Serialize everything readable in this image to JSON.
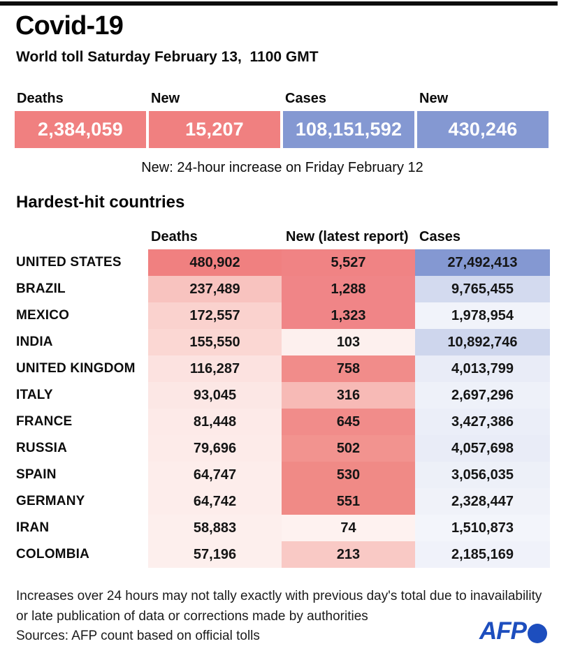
{
  "header": {
    "title": "Covid-19",
    "subtitle": "World toll Saturday February 13,  1100 GMT"
  },
  "summary": {
    "cards": [
      {
        "label": "Deaths",
        "value": "2,384,059",
        "color": "#f08080"
      },
      {
        "label": "New",
        "value": "15,207",
        "color": "#f08080"
      },
      {
        "label": "Cases",
        "value": "108,151,592",
        "color": "#8498d2"
      },
      {
        "label": "New",
        "value": "430,246",
        "color": "#8498d2"
      }
    ],
    "note": "New: 24-hour increase on Friday February 12"
  },
  "table": {
    "section_title": "Hardest-hit countries",
    "columns": [
      "Deaths",
      "New (latest report)",
      "Cases"
    ],
    "rows": [
      {
        "country": "UNITED STATES",
        "deaths": "480,902",
        "new": "5,527",
        "cases": "27,492,413",
        "colors": [
          "#f08080",
          "#f08384",
          "#8498d2"
        ]
      },
      {
        "country": "BRAZIL",
        "deaths": "237,489",
        "new": "1,288",
        "cases": "9,765,455",
        "colors": [
          "#f8c3bf",
          "#f08587",
          "#d3daef"
        ]
      },
      {
        "country": "MEXICO",
        "deaths": "172,557",
        "new": "1,323",
        "cases": "1,978,954",
        "colors": [
          "#fad2ce",
          "#f08587",
          "#f1f3fa"
        ]
      },
      {
        "country": "INDIA",
        "deaths": "155,550",
        "new": "103",
        "cases": "10,892,746",
        "colors": [
          "#fbd7d3",
          "#fdf0ee",
          "#ced6ed"
        ]
      },
      {
        "country": "UNITED KINGDOM",
        "deaths": "116,287",
        "new": "758",
        "cases": "4,013,799",
        "colors": [
          "#fce2e0",
          "#f18c8a",
          "#e9ecf7"
        ]
      },
      {
        "country": "ITALY",
        "deaths": "93,045",
        "new": "316",
        "cases": "2,697,296",
        "colors": [
          "#fce7e5",
          "#f7bab6",
          "#eef1f9"
        ]
      },
      {
        "country": "FRANCE",
        "deaths": "81,448",
        "new": "645",
        "cases": "3,427,386",
        "colors": [
          "#fdeae8",
          "#f18c8a",
          "#ebeef8"
        ]
      },
      {
        "country": "RUSSIA",
        "deaths": "79,696",
        "new": "502",
        "cases": "4,057,698",
        "colors": [
          "#fdebe9",
          "#f2938f",
          "#e9ecf7"
        ]
      },
      {
        "country": "SPAIN",
        "deaths": "64,747",
        "new": "530",
        "cases": "3,056,035",
        "colors": [
          "#fdedeb",
          "#f08a86",
          "#edf0f8"
        ]
      },
      {
        "country": "GERMANY",
        "deaths": "64,742",
        "new": "551",
        "cases": "2,328,447",
        "colors": [
          "#fdedeb",
          "#f08a86",
          "#f0f2f9"
        ]
      },
      {
        "country": "IRAN",
        "deaths": "58,883",
        "new": "74",
        "cases": "1,510,873",
        "colors": [
          "#fdefed",
          "#fef2f0",
          "#f3f5fb"
        ]
      },
      {
        "country": "COLOMBIA",
        "deaths": "57,196",
        "new": "213",
        "cases": "2,185,169",
        "colors": [
          "#fdefed",
          "#f9c9c5",
          "#f0f2fa"
        ]
      }
    ]
  },
  "footer": {
    "notes": [
      "Increases over 24 hours may not tally exactly with previous day's total due to inavailability",
      "or late publication of data or corrections made by authorities",
      "Sources: AFP count based on official tolls"
    ],
    "logo": {
      "text": "AFP",
      "color": "#1d4ebe"
    }
  },
  "chart_data": {
    "type": "table",
    "title": "Covid-19",
    "subtitle": "World toll Saturday February 13, 1100 GMT",
    "note": "New: 24-hour increase on Friday February 12",
    "world_totals": {
      "deaths": 2384059,
      "new_deaths": 15207,
      "cases": 108151592,
      "new_cases": 430246
    },
    "columns": [
      "Deaths",
      "New (latest report)",
      "Cases"
    ],
    "countries": [
      {
        "name": "UNITED STATES",
        "deaths": 480902,
        "new": 5527,
        "cases": 27492413
      },
      {
        "name": "BRAZIL",
        "deaths": 237489,
        "new": 1288,
        "cases": 9765455
      },
      {
        "name": "MEXICO",
        "deaths": 172557,
        "new": 1323,
        "cases": 1978954
      },
      {
        "name": "INDIA",
        "deaths": 155550,
        "new": 103,
        "cases": 10892746
      },
      {
        "name": "UNITED KINGDOM",
        "deaths": 116287,
        "new": 758,
        "cases": 4013799
      },
      {
        "name": "ITALY",
        "deaths": 93045,
        "new": 316,
        "cases": 2697296
      },
      {
        "name": "FRANCE",
        "deaths": 81448,
        "new": 645,
        "cases": 3427386
      },
      {
        "name": "RUSSIA",
        "deaths": 79696,
        "new": 502,
        "cases": 4057698
      },
      {
        "name": "SPAIN",
        "deaths": 64747,
        "new": 530,
        "cases": 3056035
      },
      {
        "name": "GERMANY",
        "deaths": 64742,
        "new": 551,
        "cases": 2328447
      },
      {
        "name": "IRAN",
        "deaths": 58883,
        "new": 74,
        "cases": 1510873
      },
      {
        "name": "COLOMBIA",
        "deaths": 57196,
        "new": 213,
        "cases": 2185169
      }
    ],
    "heatmap": {
      "deaths_max_color": "#f08080",
      "cases_max_color": "#8498d2",
      "min_color": "#ffffff"
    },
    "accent_colors": {
      "red": "#f08080",
      "blue": "#8498d2",
      "afp_blue": "#1d4ebe"
    }
  }
}
